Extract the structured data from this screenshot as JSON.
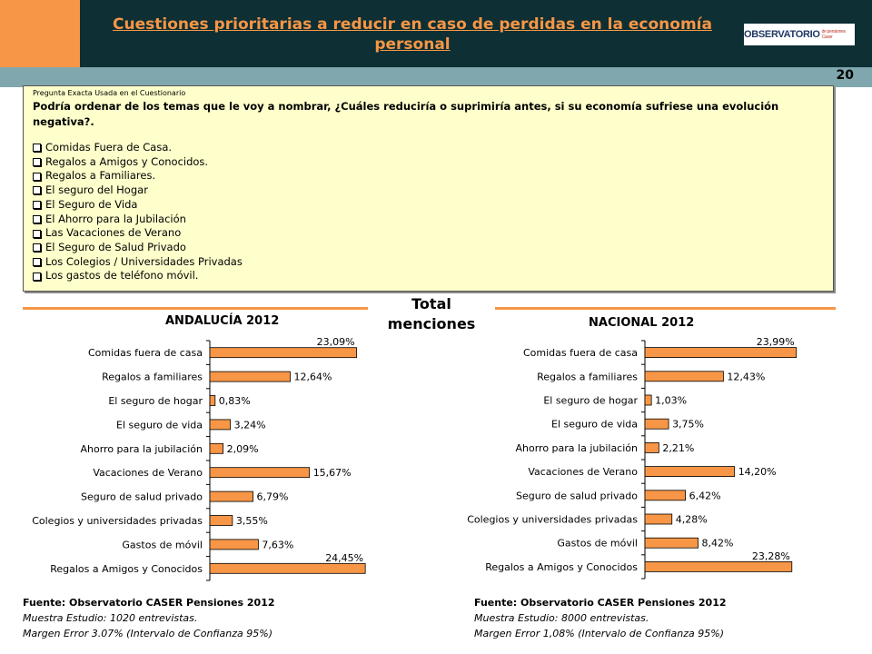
{
  "header": {
    "title": "Cuestiones prioritarias a reducir en caso de perdidas en la economía personal",
    "logo_text": "OBSERVATORIO",
    "logo_sub": "de pensiones Caser",
    "page_number": "20"
  },
  "question": {
    "label": "Pregunta Exacta Usada en el Cuestionario",
    "text": "Podría ordenar de los temas que le voy a nombrar, ¿Cuáles reduciría o suprimiría antes, si su economía sufriese una evolución negativa?.",
    "options": [
      "Comidas Fuera de Casa.",
      "Regalos a Amigos y Conocidos.",
      "Regalos a Familiares.",
      "El seguro del Hogar",
      "El Seguro de Vida",
      "El Ahorro para la Jubilación",
      "Las Vacaciones de Verano",
      "El Seguro de Salud Privado",
      "Los Colegios / Universidades Privadas",
      "Los gastos de teléfono móvil."
    ]
  },
  "center_title": "Total menciones",
  "chart_data": [
    {
      "type": "bar",
      "orientation": "horizontal",
      "title": "ANDALUCÍA 2012",
      "categories": [
        "Comidas fuera de casa",
        "Regalos a familiares",
        "El seguro de hogar",
        "El seguro de vida",
        "Ahorro para la jubilación",
        "Vacaciones de Verano",
        "Seguro de salud privado",
        "Colegios y universidades privadas",
        "Gastos de móvil",
        "Regalos a Amigos y Conocidos"
      ],
      "values": [
        23.09,
        12.64,
        0.83,
        3.24,
        2.09,
        15.67,
        6.79,
        3.55,
        7.63,
        24.45
      ],
      "data_labels": [
        "23,09%",
        "12,64%",
        "0,83%",
        "3,24%",
        "2,09%",
        "15,67%",
        "6,79%",
        "3,55%",
        "7,63%",
        "24,45%"
      ],
      "xlim": [
        0,
        30
      ],
      "color": "#f79646"
    },
    {
      "type": "bar",
      "orientation": "horizontal",
      "title": "NACIONAL 2012",
      "categories": [
        "Comidas fuera de casa",
        "Regalos a familiares",
        "El seguro de hogar",
        "El seguro de vida",
        "Ahorro para la jubilación",
        "Vacaciones de Verano",
        "Seguro de salud privado",
        "Colegios y universidades privadas",
        "Gastos de móvil",
        "Regalos a Amigos y Conocidos"
      ],
      "values": [
        23.99,
        12.43,
        1.03,
        3.75,
        2.21,
        14.2,
        6.42,
        4.28,
        8.42,
        23.28
      ],
      "data_labels": [
        "23,99%",
        "12,43%",
        "1,03%",
        "3,75%",
        "2,21%",
        "14,20%",
        "6,42%",
        "4,28%",
        "8,42%",
        "23,28%"
      ],
      "xlim": [
        0,
        30
      ],
      "color": "#f79646"
    }
  ],
  "footer_left": {
    "source": "Fuente: Observatorio CASER Pensiones 2012",
    "sample": "Muestra Estudio: 1020 entrevistas.",
    "margin": "Margen Error 3.07% (Intervalo de Confianza 95%)"
  },
  "footer_right": {
    "source": "Fuente: Observatorio CASER Pensiones 2012",
    "sample": "Muestra Estudio: 8000 entrevistas.",
    "margin": "Margen Error 1,08% (Intervalo de Confianza 95%)"
  }
}
